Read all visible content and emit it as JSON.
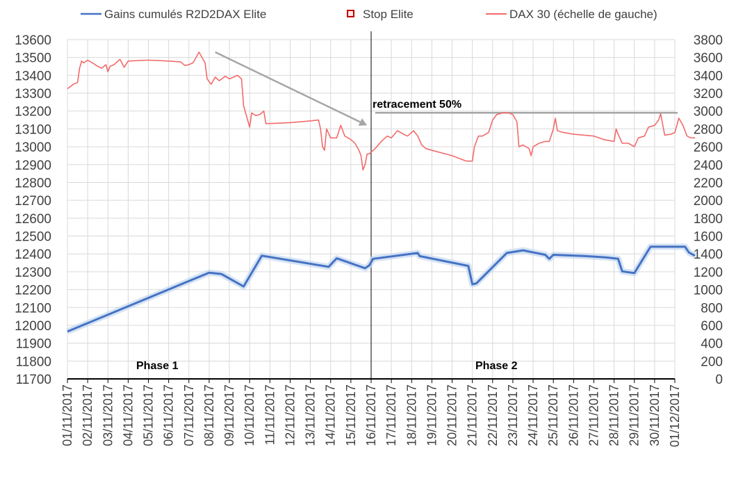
{
  "chart_data": {
    "type": "line",
    "legend": {
      "placement": "top",
      "items": [
        {
          "label": "Gains cumulés R2D2DAX Elite",
          "color": "#4472C4"
        },
        {
          "label": "Stop Elite",
          "color": "#C00000",
          "marker": "square"
        },
        {
          "label": "DAX 30 (échelle de gauche)",
          "color": "#F26B6B"
        }
      ]
    },
    "y_left": {
      "ylim": [
        11700,
        13600
      ],
      "ticks": [
        "11700",
        "11800",
        "11900",
        "12000",
        "12100",
        "12200",
        "12300",
        "12400",
        "12500",
        "12600",
        "12700",
        "12800",
        "12900",
        "13000",
        "13100",
        "13200",
        "13300",
        "13400",
        "13500",
        "13600"
      ]
    },
    "y_right": {
      "ylim": [
        0,
        3800
      ],
      "ticks": [
        "0",
        "200",
        "400",
        "600",
        "800",
        "1000",
        "1200",
        "1400",
        "1600",
        "1800",
        "2000",
        "2200",
        "2400",
        "2600",
        "2800",
        "3000",
        "3200",
        "3400",
        "3600",
        "3800"
      ]
    },
    "x_ticks": [
      "01/11/2017",
      "02/11/2017",
      "03/11/2017",
      "04/11/2017",
      "05/11/2017",
      "06/11/2017",
      "07/11/2017",
      "08/11/2017",
      "09/11/2017",
      "10/11/2017",
      "11/11/2017",
      "12/11/2017",
      "13/11/2017",
      "14/11/2017",
      "15/11/2017",
      "16/11/2017",
      "17/11/2017",
      "18/11/2017",
      "19/11/2017",
      "20/11/2017",
      "21/11/2017",
      "22/11/2017",
      "23/11/2017",
      "24/11/2017",
      "25/11/2017",
      "26/11/2017",
      "27/11/2017",
      "28/11/2017",
      "29/11/2017",
      "30/11/2017",
      "01/12/2017"
    ],
    "grid": true,
    "series": [
      {
        "name": "DAX 30 (échelle de gauche)",
        "axis": "left",
        "color": "#F26B6B",
        "points": [
          [
            0,
            13325
          ],
          [
            0.3,
            13350
          ],
          [
            0.5,
            13360
          ],
          [
            0.6,
            13440
          ],
          [
            0.7,
            13480
          ],
          [
            0.8,
            13470
          ],
          [
            1.0,
            13485
          ],
          [
            1.3,
            13465
          ],
          [
            1.5,
            13450
          ],
          [
            1.7,
            13440
          ],
          [
            1.9,
            13460
          ],
          [
            2.0,
            13420
          ],
          [
            2.1,
            13450
          ],
          [
            2.3,
            13460
          ],
          [
            2.6,
            13490
          ],
          [
            2.8,
            13445
          ],
          [
            3.0,
            13480
          ],
          [
            4.0,
            13485
          ],
          [
            5.0,
            13480
          ],
          [
            5.6,
            13475
          ],
          [
            5.8,
            13455
          ],
          [
            6.0,
            13460
          ],
          [
            6.2,
            13470
          ],
          [
            6.5,
            13530
          ],
          [
            6.8,
            13470
          ],
          [
            6.9,
            13380
          ],
          [
            7.1,
            13350
          ],
          [
            7.3,
            13390
          ],
          [
            7.5,
            13370
          ],
          [
            7.8,
            13395
          ],
          [
            8.0,
            13380
          ],
          [
            8.4,
            13400
          ],
          [
            8.6,
            13380
          ],
          [
            8.7,
            13230
          ],
          [
            8.85,
            13170
          ],
          [
            9.0,
            13110
          ],
          [
            9.1,
            13190
          ],
          [
            9.3,
            13175
          ],
          [
            9.5,
            13180
          ],
          [
            9.7,
            13200
          ],
          [
            9.8,
            13130
          ],
          [
            10.0,
            13130
          ],
          [
            11.0,
            13135
          ],
          [
            12.0,
            13145
          ],
          [
            12.4,
            13150
          ],
          [
            12.5,
            13100
          ],
          [
            12.6,
            13000
          ],
          [
            12.7,
            12980
          ],
          [
            12.8,
            13100
          ],
          [
            13.0,
            13050
          ],
          [
            13.3,
            13050
          ],
          [
            13.5,
            13120
          ],
          [
            13.7,
            13060
          ],
          [
            14.0,
            13040
          ],
          [
            14.2,
            13020
          ],
          [
            14.4,
            12980
          ],
          [
            14.5,
            12950
          ],
          [
            14.6,
            12870
          ],
          [
            14.7,
            12900
          ],
          [
            14.8,
            12960
          ],
          [
            14.9,
            12960
          ],
          [
            15.2,
            12990
          ],
          [
            15.5,
            13030
          ],
          [
            15.8,
            13060
          ],
          [
            16.0,
            13050
          ],
          [
            16.3,
            13090
          ],
          [
            16.6,
            13070
          ],
          [
            16.8,
            13060
          ],
          [
            17.1,
            13090
          ],
          [
            17.3,
            13060
          ],
          [
            17.5,
            13010
          ],
          [
            17.7,
            12990
          ],
          [
            18.0,
            12980
          ],
          [
            19.0,
            12950
          ],
          [
            19.7,
            12920
          ],
          [
            20.0,
            12920
          ],
          [
            20.1,
            13000
          ],
          [
            20.3,
            13060
          ],
          [
            20.5,
            13060
          ],
          [
            20.8,
            13080
          ],
          [
            21.0,
            13150
          ],
          [
            21.2,
            13180
          ],
          [
            21.5,
            13190
          ],
          [
            21.8,
            13190
          ],
          [
            22.0,
            13180
          ],
          [
            22.2,
            13140
          ],
          [
            22.3,
            13000
          ],
          [
            22.5,
            13010
          ],
          [
            22.8,
            12990
          ],
          [
            22.9,
            12950
          ],
          [
            23.0,
            13000
          ],
          [
            23.3,
            13020
          ],
          [
            23.6,
            13030
          ],
          [
            23.8,
            13030
          ],
          [
            24.0,
            13100
          ],
          [
            24.1,
            13160
          ],
          [
            24.2,
            13090
          ],
          [
            24.5,
            13080
          ],
          [
            25.0,
            13070
          ],
          [
            26.0,
            13060
          ],
          [
            26.5,
            13040
          ],
          [
            27.0,
            13030
          ],
          [
            27.1,
            13100
          ],
          [
            27.2,
            13070
          ],
          [
            27.4,
            13020
          ],
          [
            27.7,
            13020
          ],
          [
            28.0,
            13000
          ],
          [
            28.2,
            13050
          ],
          [
            28.5,
            13060
          ],
          [
            28.7,
            13110
          ],
          [
            29.0,
            13120
          ],
          [
            29.2,
            13150
          ],
          [
            29.3,
            13185
          ],
          [
            29.5,
            13065
          ],
          [
            29.8,
            13070
          ],
          [
            30.0,
            13080
          ],
          [
            30.2,
            13160
          ],
          [
            30.4,
            13120
          ],
          [
            30.6,
            13060
          ],
          [
            30.8,
            13050
          ],
          [
            31.0,
            13050
          ]
        ]
      },
      {
        "name": "Gains cumulés R2D2DAX Elite",
        "axis": "right",
        "color": "#4472C4",
        "points": [
          [
            0,
            530
          ],
          [
            7,
            1190
          ],
          [
            7.6,
            1175
          ],
          [
            8.7,
            1035
          ],
          [
            9.6,
            1380
          ],
          [
            12.9,
            1255
          ],
          [
            13.3,
            1350
          ],
          [
            14.7,
            1240
          ],
          [
            14.9,
            1270
          ],
          [
            15.1,
            1345
          ],
          [
            17.3,
            1410
          ],
          [
            17.4,
            1375
          ],
          [
            19.8,
            1265
          ],
          [
            20.0,
            1060
          ],
          [
            20.2,
            1070
          ],
          [
            21.7,
            1410
          ],
          [
            22.5,
            1440
          ],
          [
            23.6,
            1390
          ],
          [
            23.8,
            1345
          ],
          [
            24.0,
            1390
          ],
          [
            25.6,
            1375
          ],
          [
            26.6,
            1360
          ],
          [
            27.2,
            1345
          ],
          [
            27.4,
            1205
          ],
          [
            28.0,
            1185
          ],
          [
            28.8,
            1480
          ],
          [
            29.9,
            1480
          ],
          [
            30.5,
            1480
          ],
          [
            30.7,
            1415
          ],
          [
            31.0,
            1380
          ]
        ]
      }
    ],
    "annotations": [
      {
        "text": "retracement 50%",
        "type": "horizontal_line",
        "y_left": 13190,
        "x_from": 15.0,
        "x_to": 31.0
      },
      {
        "text": "Phase 1",
        "region": "left"
      },
      {
        "text": "Phase 2",
        "region": "right"
      },
      {
        "type": "arrow",
        "from": [
          7.3,
          13530
        ],
        "to": [
          14.8,
          13120
        ],
        "color": "#A6A6A6"
      },
      {
        "type": "vertical_line",
        "x": 15.0,
        "color": "#000000"
      }
    ]
  }
}
